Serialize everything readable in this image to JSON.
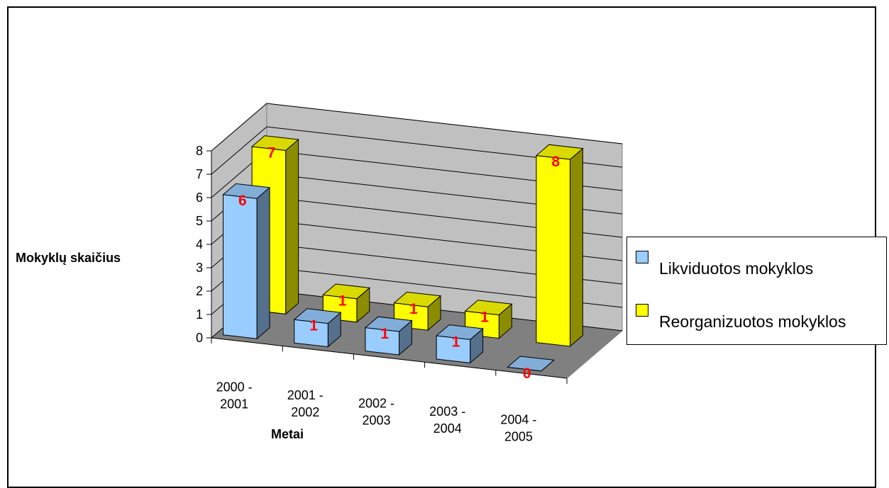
{
  "chart_data": {
    "type": "bar",
    "title": "",
    "xlabel": "Metai",
    "ylabel": "Mokyklų skaičius",
    "ylim": [
      0,
      8
    ],
    "yticks": [
      "0",
      "1",
      "2",
      "3",
      "4",
      "5",
      "6",
      "7",
      "8"
    ],
    "categories": [
      [
        "2000 -",
        "2001"
      ],
      [
        "2001 -",
        "2002"
      ],
      [
        "2002 -",
        "2003"
      ],
      [
        "2003 -",
        "2004"
      ],
      [
        "2004 -",
        "2005"
      ]
    ],
    "series": [
      {
        "name": "Likviduotos mokyklos",
        "values": [
          6,
          1,
          1,
          1,
          0
        ],
        "color": "#99ccff"
      },
      {
        "name": "Reorganizuotos mokyklos",
        "values": [
          7,
          1,
          1,
          1,
          8
        ],
        "color": "#ffff00"
      }
    ],
    "data_labels": true,
    "legend_position": "right",
    "grid": true,
    "three_d": true
  },
  "colors": {
    "wall": "#c0c0c0",
    "floor": "#808080",
    "grid": "#000000",
    "data_label": "#ff0000"
  },
  "legend": {
    "items": [
      {
        "label": "Likviduotos mokyklos",
        "color": "#99ccff"
      },
      {
        "label": "Reorganizuotos mokyklos",
        "color": "#ffff00"
      }
    ]
  }
}
